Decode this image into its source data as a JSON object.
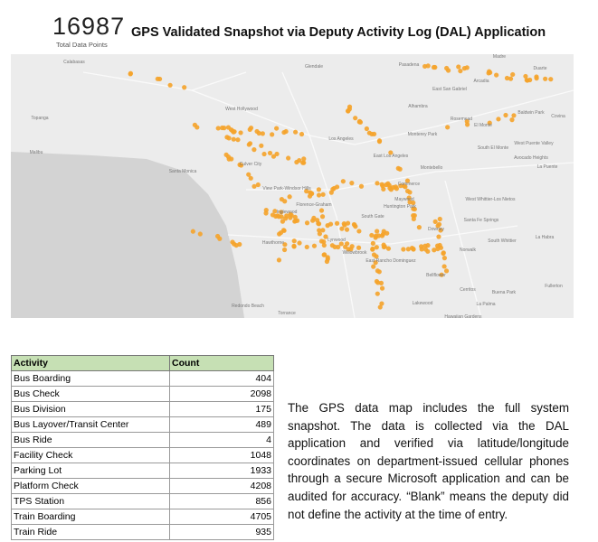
{
  "header": {
    "total": "16987",
    "total_label": "Total Data Points",
    "title": "GPS Validated Snapshot via Deputy Activity Log (DAL) Application"
  },
  "map": {
    "labels": [
      "Calabasas",
      "Glendale",
      "Pasadena",
      "Madre",
      "Duarte",
      "Arcadia",
      "East San Gabriel",
      "Alhambra",
      "Rosemead",
      "El Monte",
      "Baldwin Park",
      "Covina",
      "West Hollywood",
      "Topanga",
      "Malibu",
      "Los Angeles",
      "Monterey Park",
      "East Los Angeles",
      "South El Monte",
      "West Puente Valley",
      "Avocado Heights",
      "La Puente",
      "Culver City",
      "Santa Monica",
      "Montebello",
      "Commerce",
      "View Park-Windsor Hills",
      "Inglewood",
      "Maywood",
      "Huntington Park",
      "Florence-Graham",
      "West Whittier-Los Nietos",
      "Hawthorne",
      "South Gate",
      "Downey",
      "Santa Fe Springs",
      "South Whittier",
      "La Habra",
      "Lynwood",
      "Norwalk",
      "Willowbrook",
      "East Rancho Dominguez",
      "Bellflower",
      "Cerritos",
      "Buena Park",
      "Redondo Beach",
      "Torrance",
      "Lakewood",
      "La Palma",
      "Hawaiian Gardens",
      "Fullerton"
    ]
  },
  "table": {
    "header": [
      "Activity",
      "Count"
    ],
    "rows": [
      [
        "Bus Boarding",
        404
      ],
      [
        "Bus Check",
        2098
      ],
      [
        "Bus Division",
        175
      ],
      [
        "Bus Layover/Transit Center",
        489
      ],
      [
        "Bus Ride",
        4
      ],
      [
        "Facility Check",
        1048
      ],
      [
        "Parking Lot",
        1933
      ],
      [
        "Platform Check",
        4208
      ],
      [
        "TPS Station",
        856
      ],
      [
        "Train Boarding",
        4705
      ],
      [
        "Train Ride",
        935
      ]
    ]
  },
  "note": "The GPS data map includes the full system snapshot. The data is collected via the DAL application and verified via latitude/longitude coordinates on department-issued cellular phones through a secure Microsoft application and can be audited for accuracy. “Blank” means the deputy did not define the activity at the time of entry."
}
